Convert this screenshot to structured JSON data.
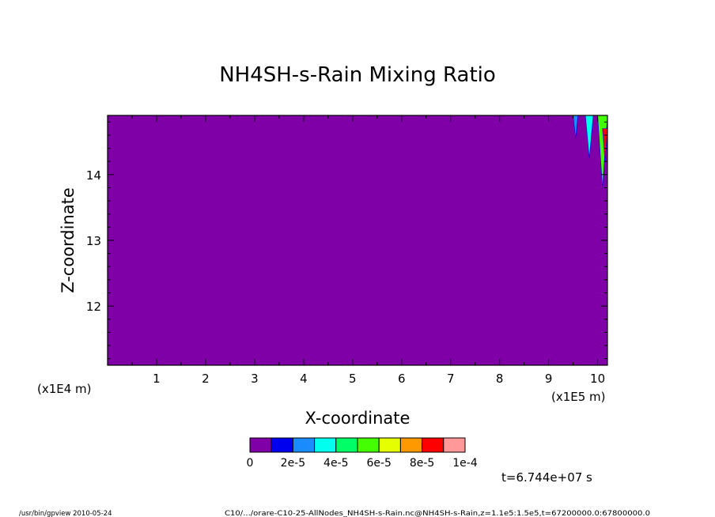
{
  "chart_data": {
    "type": "heatmap",
    "title": "NH4SH-s-Rain Mixing Ratio",
    "xlabel": "X-coordinate",
    "ylabel": "Z-coordinate",
    "x_unit_left": "(x1E4 m)",
    "x_unit_right": "(x1E5 m)",
    "xlim": [
      0.0,
      10.2
    ],
    "ylim": [
      11.1,
      14.9
    ],
    "x_ticks": [
      1,
      2,
      3,
      4,
      5,
      6,
      7,
      8,
      9,
      10
    ],
    "x_tick_labels": [
      "1",
      "2",
      "3",
      "4",
      "5",
      "6",
      "7",
      "8",
      "9",
      "10"
    ],
    "y_ticks": [
      12,
      13,
      14
    ],
    "y_tick_labels": [
      "12",
      "13",
      "14"
    ],
    "background_level": 0,
    "features": [
      {
        "x": 9.55,
        "z_top": 14.9,
        "z_bottom": 14.55,
        "half_width": 0.05,
        "level": 2e-05
      },
      {
        "x": 9.83,
        "z_top": 14.9,
        "z_bottom": 14.25,
        "half_width": 0.08,
        "level": 3e-05
      },
      {
        "x": 10.1,
        "z_top": 14.9,
        "z_bottom": 13.8,
        "half_width": 0.1,
        "level": 5e-05
      },
      {
        "x": 10.15,
        "z_top": 14.7,
        "z_bottom": 14.2,
        "half_width": 0.05,
        "level": 8e-05
      }
    ],
    "colorbar": {
      "colors": [
        "#8000a8",
        "#0000ee",
        "#1a8cff",
        "#00ffee",
        "#00ff66",
        "#44ff00",
        "#e6ff00",
        "#ff9900",
        "#ff0000",
        "#ff9999"
      ],
      "labels": [
        "0",
        "2e-5",
        "4e-5",
        "6e-5",
        "8e-5",
        "1e-4"
      ]
    },
    "time_label": "t=6.744e+07 s"
  },
  "footer": {
    "left": "/usr/bin/gpview  2010-05-24",
    "right": "C10/.../orare-C10-25-AllNodes_NH4SH-s-Rain.nc@NH4SH-s-Rain,z=1.1e5:1.5e5,t=67200000.0:67800000.0"
  }
}
